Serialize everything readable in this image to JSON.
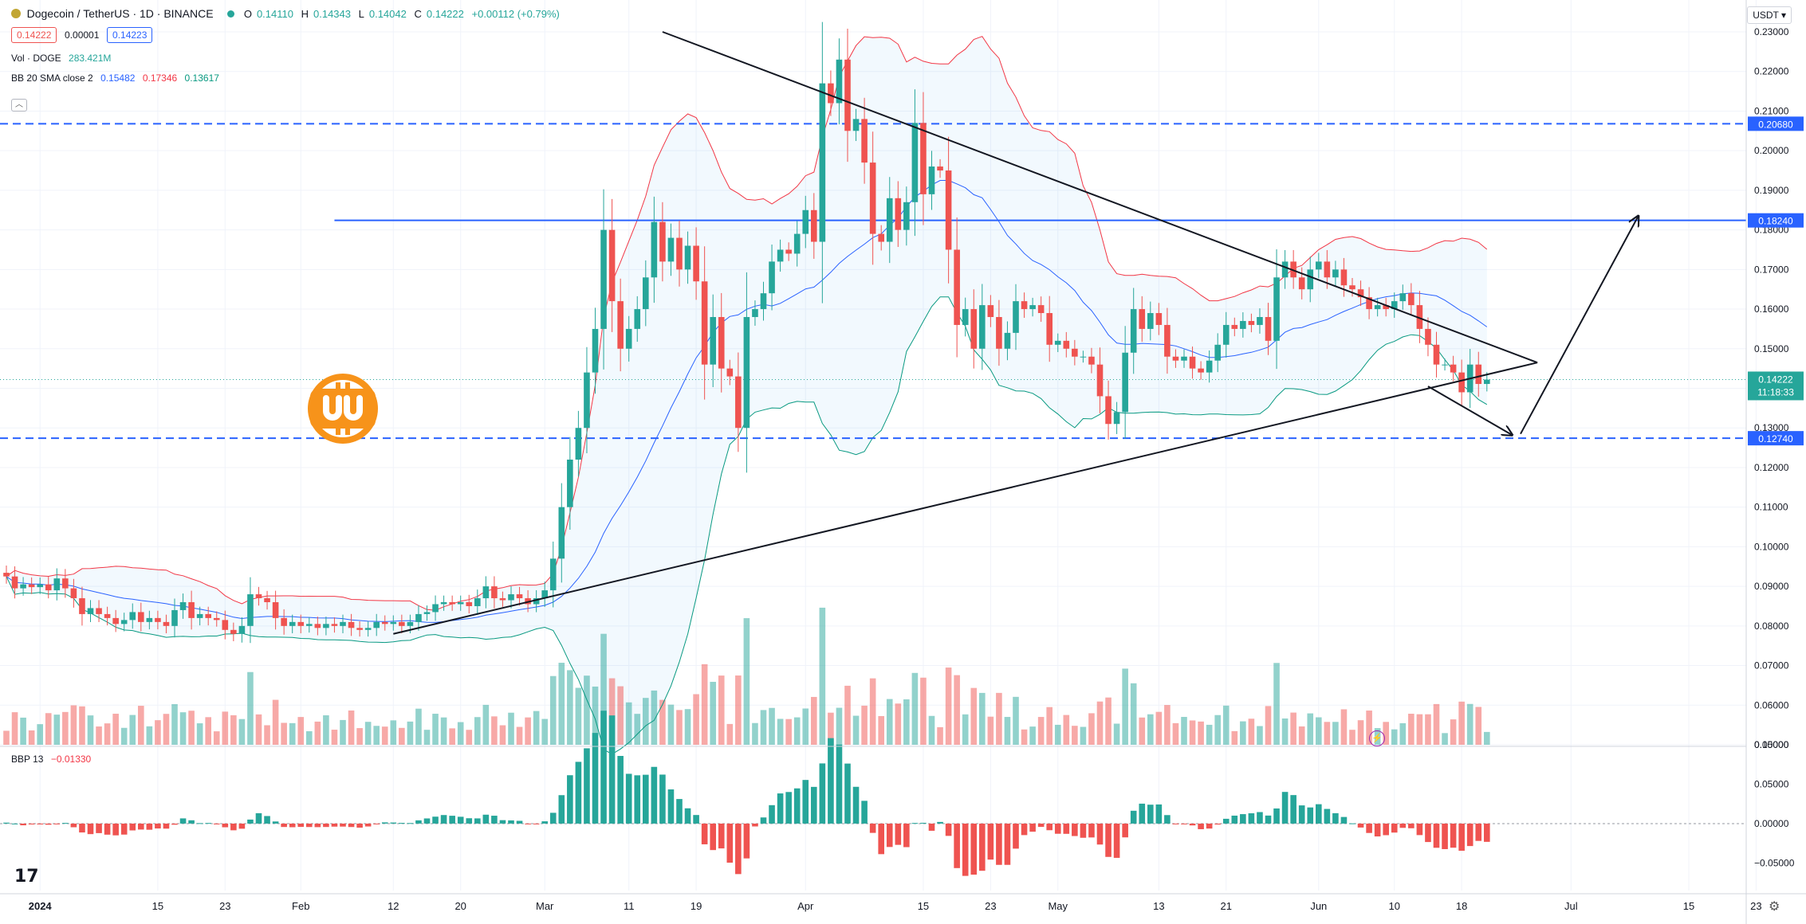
{
  "header": {
    "symbol": "Dogecoin / TetherUS · 1D · BINANCE",
    "ohlc": {
      "O": "0.14110",
      "H": "0.14343",
      "L": "0.14042",
      "C": "0.14222",
      "chg": "+0.00112 (+0.79%)"
    },
    "sell_price": "0.14222",
    "spread": "0.00001",
    "buy_price": "0.14223",
    "vol_label": "Vol · DOGE",
    "vol_value": "283.421M",
    "bb_label": "BB 20 SMA close 2",
    "bb_basis": "0.15482",
    "bb_upper": "0.17346",
    "bb_lower": "0.13617",
    "bbp_label": "BBP 13",
    "bbp_value": "−0.01330",
    "currency": "USDT"
  },
  "colors": {
    "up": "#26a69a",
    "down": "#ef5350",
    "bb_basis": "#2962ff",
    "bb_upper": "#f23645",
    "bb_lower": "#089981",
    "hline": "#2962ff",
    "logo": "#f7931a"
  },
  "icons": {
    "logo": "bitcoin-logo-icon",
    "tv": "tradingview-logo-icon",
    "gear": "gear-icon",
    "bolt": "lightning-icon"
  },
  "chart_data": {
    "type": "candlestick",
    "x_start": "2023-12-28",
    "ylim": [
      0.05,
      0.23
    ],
    "yticks": [
      "0.05000",
      "0.06000",
      "0.07000",
      "0.08000",
      "0.09000",
      "0.10000",
      "0.11000",
      "0.12000",
      "0.13000",
      "0.14000",
      "0.15000",
      "0.16000",
      "0.17000",
      "0.18000",
      "0.19000",
      "0.20000",
      "0.21000",
      "0.22000",
      "0.23000"
    ],
    "xticks": [
      {
        "date": "2024-01-01",
        "label": "2024"
      },
      {
        "date": "2024-01-15",
        "label": "15"
      },
      {
        "date": "2024-01-23",
        "label": "23"
      },
      {
        "date": "2024-02-01",
        "label": "Feb"
      },
      {
        "date": "2024-02-12",
        "label": "12"
      },
      {
        "date": "2024-02-20",
        "label": "20"
      },
      {
        "date": "2024-03-01",
        "label": "Mar"
      },
      {
        "date": "2024-03-11",
        "label": "11"
      },
      {
        "date": "2024-03-19",
        "label": "19"
      },
      {
        "date": "2024-04-01",
        "label": "Apr"
      },
      {
        "date": "2024-04-15",
        "label": "15"
      },
      {
        "date": "2024-04-23",
        "label": "23"
      },
      {
        "date": "2024-05-01",
        "label": "May"
      },
      {
        "date": "2024-05-13",
        "label": "13"
      },
      {
        "date": "2024-05-21",
        "label": "21"
      },
      {
        "date": "2024-06-01",
        "label": "Jun"
      },
      {
        "date": "2024-06-10",
        "label": "10"
      },
      {
        "date": "2024-06-18",
        "label": "18"
      },
      {
        "date": "2024-07-01",
        "label": "Jul"
      },
      {
        "date": "2024-07-15",
        "label": "15"
      },
      {
        "date": "2024-07-23",
        "label": "23"
      }
    ],
    "closes": [
      0.0925,
      0.0895,
      0.0905,
      0.0898,
      0.0905,
      0.089,
      0.092,
      0.0895,
      0.087,
      0.083,
      0.0845,
      0.083,
      0.082,
      0.0805,
      0.0815,
      0.0835,
      0.081,
      0.082,
      0.081,
      0.08,
      0.084,
      0.086,
      0.082,
      0.083,
      0.082,
      0.0815,
      0.079,
      0.078,
      0.08,
      0.088,
      0.087,
      0.086,
      0.082,
      0.08,
      0.081,
      0.08,
      0.0805,
      0.0795,
      0.0805,
      0.08,
      0.081,
      0.0795,
      0.079,
      0.0795,
      0.081,
      0.0805,
      0.081,
      0.08,
      0.081,
      0.083,
      0.0835,
      0.0855,
      0.086,
      0.0855,
      0.086,
      0.085,
      0.087,
      0.09,
      0.087,
      0.0865,
      0.088,
      0.087,
      0.0855,
      0.087,
      0.089,
      0.097,
      0.11,
      0.122,
      0.13,
      0.144,
      0.155,
      0.18,
      0.162,
      0.15,
      0.155,
      0.16,
      0.168,
      0.182,
      0.172,
      0.178,
      0.17,
      0.176,
      0.167,
      0.146,
      0.158,
      0.145,
      0.143,
      0.13,
      0.158,
      0.16,
      0.164,
      0.172,
      0.175,
      0.174,
      0.179,
      0.185,
      0.177,
      0.217,
      0.212,
      0.223,
      0.205,
      0.208,
      0.197,
      0.179,
      0.177,
      0.188,
      0.18,
      0.187,
      0.207,
      0.189,
      0.196,
      0.195,
      0.175,
      0.156,
      0.16,
      0.15,
      0.161,
      0.158,
      0.15,
      0.154,
      0.162,
      0.16,
      0.161,
      0.159,
      0.151,
      0.152,
      0.15,
      0.148,
      0.148,
      0.146,
      0.138,
      0.131,
      0.134,
      0.149,
      0.16,
      0.155,
      0.159,
      0.156,
      0.148,
      0.147,
      0.148,
      0.145,
      0.144,
      0.147,
      0.151,
      0.156,
      0.155,
      0.157,
      0.156,
      0.158,
      0.152,
      0.168,
      0.172,
      0.168,
      0.165,
      0.17,
      0.172,
      0.168,
      0.17,
      0.166,
      0.165,
      0.163,
      0.16,
      0.161,
      0.16,
      0.162,
      0.164,
      0.161,
      0.155,
      0.151,
      0.146,
      0.146,
      0.144,
      0.139,
      0.146,
      0.1411,
      0.1422
    ],
    "volume_ylim": [
      0,
      160000000
    ],
    "bbp_ylim": [
      -0.085,
      0.095
    ],
    "bbp_ticks": [
      "0.10000",
      "0.05000",
      "0.00000",
      "−0.05000"
    ],
    "price_lines": [
      {
        "value": 0.2068,
        "label": "0.20680",
        "style": "dashed"
      },
      {
        "value": 0.1824,
        "label": "0.18240",
        "style": "solid",
        "from": "2024-02-05"
      },
      {
        "value": 0.1274,
        "label": "0.12740",
        "style": "dashed"
      }
    ],
    "last_price": {
      "value": 0.14222,
      "label": "0.14222",
      "countdown": "11:18:33"
    },
    "drawings": [
      {
        "name": "triangle-upper-line",
        "from": [
          "2024-03-15",
          0.23
        ],
        "to": [
          "2024-06-27",
          0.1465
        ]
      },
      {
        "name": "triangle-lower-line",
        "from": [
          "2024-02-12",
          0.078
        ],
        "to": [
          "2024-06-27",
          0.1465
        ]
      },
      {
        "name": "projection-down-leg",
        "from": [
          "2024-06-14",
          0.1405
        ],
        "to": [
          "2024-06-24",
          0.1282
        ]
      },
      {
        "name": "projection-up-leg",
        "from": [
          "2024-06-25",
          0.1285
        ],
        "to": [
          "2024-07-09",
          0.1835
        ]
      }
    ]
  }
}
